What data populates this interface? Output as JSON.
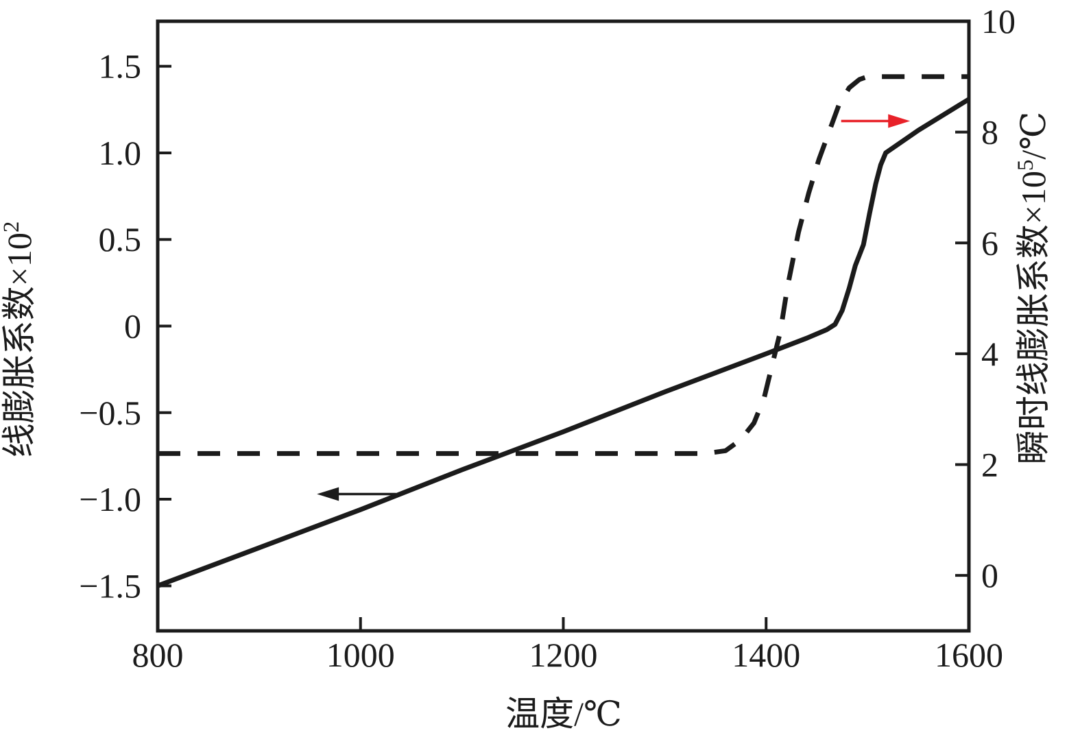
{
  "chart_data": {
    "type": "line",
    "title": "",
    "xlabel": "温度/℃",
    "ylabel_left": "线膨胀系数×10²",
    "ylabel_left_base": "线膨胀系数×10",
    "ylabel_left_sup": "2",
    "ylabel_right": "瞬时线膨胀系数×10⁵/℃",
    "ylabel_right_base": "瞬时线膨胀系数×10",
    "ylabel_right_sup": "5",
    "ylabel_right_suffix": "/℃",
    "xlim": [
      800,
      1600
    ],
    "ylim_left": [
      -1.76,
      1.76
    ],
    "ylim_right": [
      -1,
      10
    ],
    "x_ticks": [
      800,
      1000,
      1200,
      1400,
      1600
    ],
    "y_left_ticks": [
      1.5,
      1.0,
      0.5,
      0,
      -0.5,
      -1.0,
      -1.5
    ],
    "y_left_tick_labels": [
      "1.5",
      "1.0",
      "0.5",
      "0",
      "−0.5",
      "−1.0",
      "−1.5"
    ],
    "y_right_ticks": [
      10,
      8,
      6,
      4,
      2,
      0
    ],
    "y_right_tick_labels": [
      "10",
      "8",
      "6",
      "4",
      "2",
      "0"
    ],
    "grid": false,
    "legend_position": "none",
    "background_color": "#ffffff",
    "axis_color": "#1b1b1b",
    "series": [
      {
        "name": "线膨胀系数 (solid curve, left axis)",
        "axis": "left",
        "line_style": "solid",
        "color": "#1b1b1b",
        "points": [
          [
            800,
            -1.5
          ],
          [
            900,
            -1.28
          ],
          [
            1000,
            -1.06
          ],
          [
            1100,
            -0.83
          ],
          [
            1200,
            -0.61
          ],
          [
            1300,
            -0.38
          ],
          [
            1400,
            -0.16
          ],
          [
            1440,
            -0.07
          ],
          [
            1460,
            -0.02
          ],
          [
            1468,
            0.01
          ],
          [
            1475,
            0.09
          ],
          [
            1482,
            0.22
          ],
          [
            1488,
            0.35
          ],
          [
            1492,
            0.41
          ],
          [
            1496,
            0.47
          ],
          [
            1502,
            0.65
          ],
          [
            1508,
            0.82
          ],
          [
            1513,
            0.93
          ],
          [
            1518,
            1.0
          ],
          [
            1550,
            1.13
          ],
          [
            1600,
            1.31
          ]
        ]
      },
      {
        "name": "瞬时线膨胀系数 (dashed curve, right axis)",
        "axis": "right",
        "line_style": "dashed",
        "color": "#1b1b1b",
        "points": [
          [
            800,
            2.2
          ],
          [
            1000,
            2.2
          ],
          [
            1200,
            2.2
          ],
          [
            1340,
            2.2
          ],
          [
            1360,
            2.25
          ],
          [
            1375,
            2.45
          ],
          [
            1388,
            2.75
          ],
          [
            1398,
            3.2
          ],
          [
            1406,
            3.8
          ],
          [
            1414,
            4.4
          ],
          [
            1421,
            5.2
          ],
          [
            1432,
            6.2
          ],
          [
            1442,
            6.9
          ],
          [
            1452,
            7.5
          ],
          [
            1462,
            8.0
          ],
          [
            1472,
            8.5
          ],
          [
            1482,
            8.8
          ],
          [
            1492,
            8.95
          ],
          [
            1500,
            9.0
          ],
          [
            1600,
            9.0
          ]
        ]
      }
    ],
    "annotations": [
      {
        "type": "arrow",
        "points_to": "left",
        "meaning": "solid curve reads on left axis",
        "color": "#1b1b1b",
        "axis": "left",
        "x_tail": 1035,
        "x_tip": 957,
        "y": -0.97
      },
      {
        "type": "arrow",
        "points_to": "right",
        "meaning": "dashed curve reads on right axis",
        "color": "#e82129",
        "axis": "right",
        "x_tail": 1474,
        "x_tip": 1542,
        "y": 8.2
      }
    ]
  }
}
